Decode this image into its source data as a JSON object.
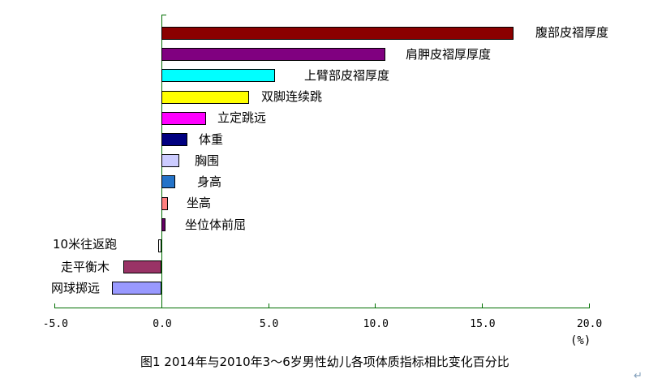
{
  "chart_data": {
    "type": "bar",
    "orientation": "horizontal",
    "title": "图1  2014年与2010年3～6岁男性幼儿各项体质指标相比变化百分比",
    "xlabel": "(%)",
    "xlim": [
      -5.0,
      20.0
    ],
    "grid": false,
    "legend": "none",
    "x_ticks": [
      "-5.0",
      "0.0",
      "5.0",
      "10.0",
      "15.0",
      "20.0"
    ],
    "tick_values": [
      -5,
      0,
      5,
      10,
      15,
      20
    ],
    "categories": [
      "腹部皮褶厚度",
      "肩胛皮褶厚厚度",
      "上臂部皮褶厚度",
      "双脚连续跳",
      "立定跳远",
      "体重",
      "胸围",
      "身高",
      "坐高",
      "坐位体前屈",
      "10米往返跑",
      "走平衡木",
      "网球掷远"
    ],
    "values": [
      16.5,
      10.5,
      5.3,
      4.1,
      2.1,
      1.2,
      0.85,
      0.63,
      0.32,
      0.2,
      -0.15,
      -1.8,
      -2.3
    ],
    "bar_colors": [
      "#8B0000",
      "#800080",
      "#00FFFF",
      "#FFFF00",
      "#FF00FF",
      "#000080",
      "#CCCCFF",
      "#2473C8",
      "#FF8080",
      "#660066",
      "#FFFFFF",
      "#993366",
      "#9999FF"
    ],
    "axis_color": "#006E00",
    "bar_border_color": "#000000"
  },
  "return_mark": "↵"
}
